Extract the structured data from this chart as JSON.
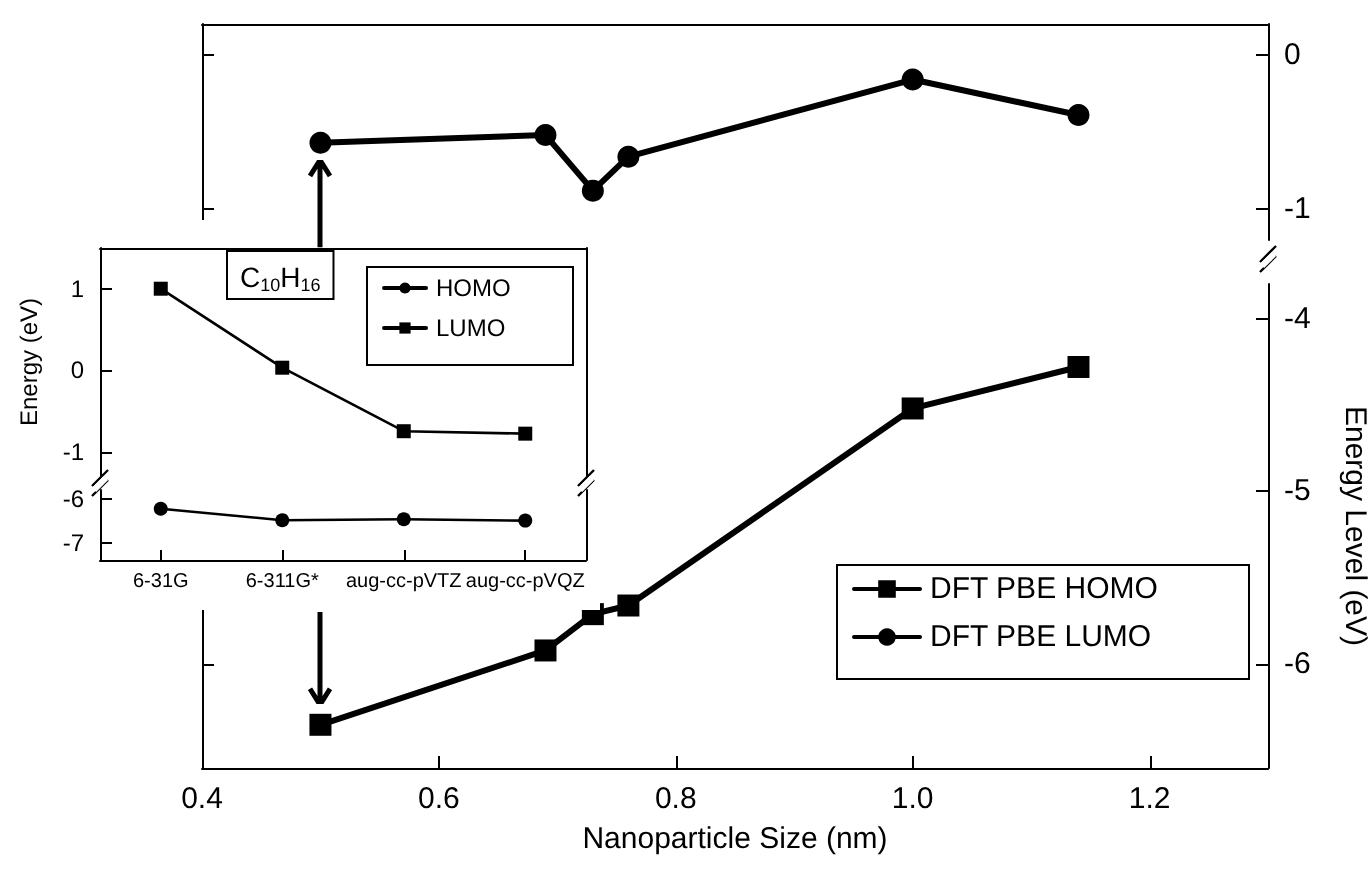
{
  "chart_data": [
    {
      "type": "line",
      "xlim": [
        0.4,
        1.3
      ],
      "ylim": [
        -1.2,
        0.2
      ],
      "yticks": [
        -1,
        0
      ],
      "tick_labels": "y",
      "legend": "bottom right",
      "x": [
        0.5,
        0.69,
        0.73,
        0.76,
        1.0,
        1.14
      ],
      "series": [
        {
          "name": "DFT PBE LUMO",
          "color": "#000000",
          "marker": "circle",
          "values": [
            -0.57,
            -0.52,
            -0.88,
            -0.66,
            -0.16,
            -0.39
          ]
        }
      ]
    },
    {
      "type": "line",
      "xlabel": "Nanoparticle Size (nm)",
      "ylabel": "Energy Level (eV)",
      "xlim": [
        0.4,
        1.3
      ],
      "xticks": [
        0.4,
        0.6,
        0.8,
        {
          "value": 1,
          "label": "1.0"
        },
        1.2
      ],
      "ylim": [
        -6.6,
        -3.8
      ],
      "yticks": [
        -6,
        -5,
        -4
      ],
      "legend": "bottom right",
      "x": [
        0.5,
        0.69,
        0.73,
        0.76,
        1.0,
        1.14
      ],
      "series": [
        {
          "name": "DFT PBE HOMO",
          "color": "#000000",
          "marker": "square",
          "values": [
            -6.35,
            -5.92,
            -5.71,
            -5.66,
            -4.52,
            -4.28
          ]
        }
      ]
    },
    {
      "type": "line",
      "ylabel": "Energy (eV)",
      "categories": [
        null,
        null,
        null,
        null
      ],
      "ylim": [
        -1.3,
        1.5
      ],
      "yticks": [
        -1,
        0,
        1
      ],
      "tick_labels": "y",
      "legend": "top right",
      "annotations": [
        "C$_{10}$H$_{16}$"
      ],
      "series": [
        {
          "name": "LUMO",
          "color": "#000000",
          "marker": "square",
          "values": [
            1.0,
            0.03,
            -0.75,
            -0.78
          ]
        }
      ]
    },
    {
      "type": "line",
      "categories": [
        "6-31G",
        "6-311G*",
        "aug-cc-pVTZ",
        "aug-cc-pVQZ"
      ],
      "ylim": [
        -7.4,
        -5.8
      ],
      "yticks": [
        -7,
        -6
      ],
      "legend": "top right",
      "series": [
        {
          "name": "HOMO",
          "color": "#000000",
          "marker": "circle",
          "values": [
            -6.23,
            -6.49,
            -6.47,
            -6.5
          ]
        }
      ]
    }
  ]
}
